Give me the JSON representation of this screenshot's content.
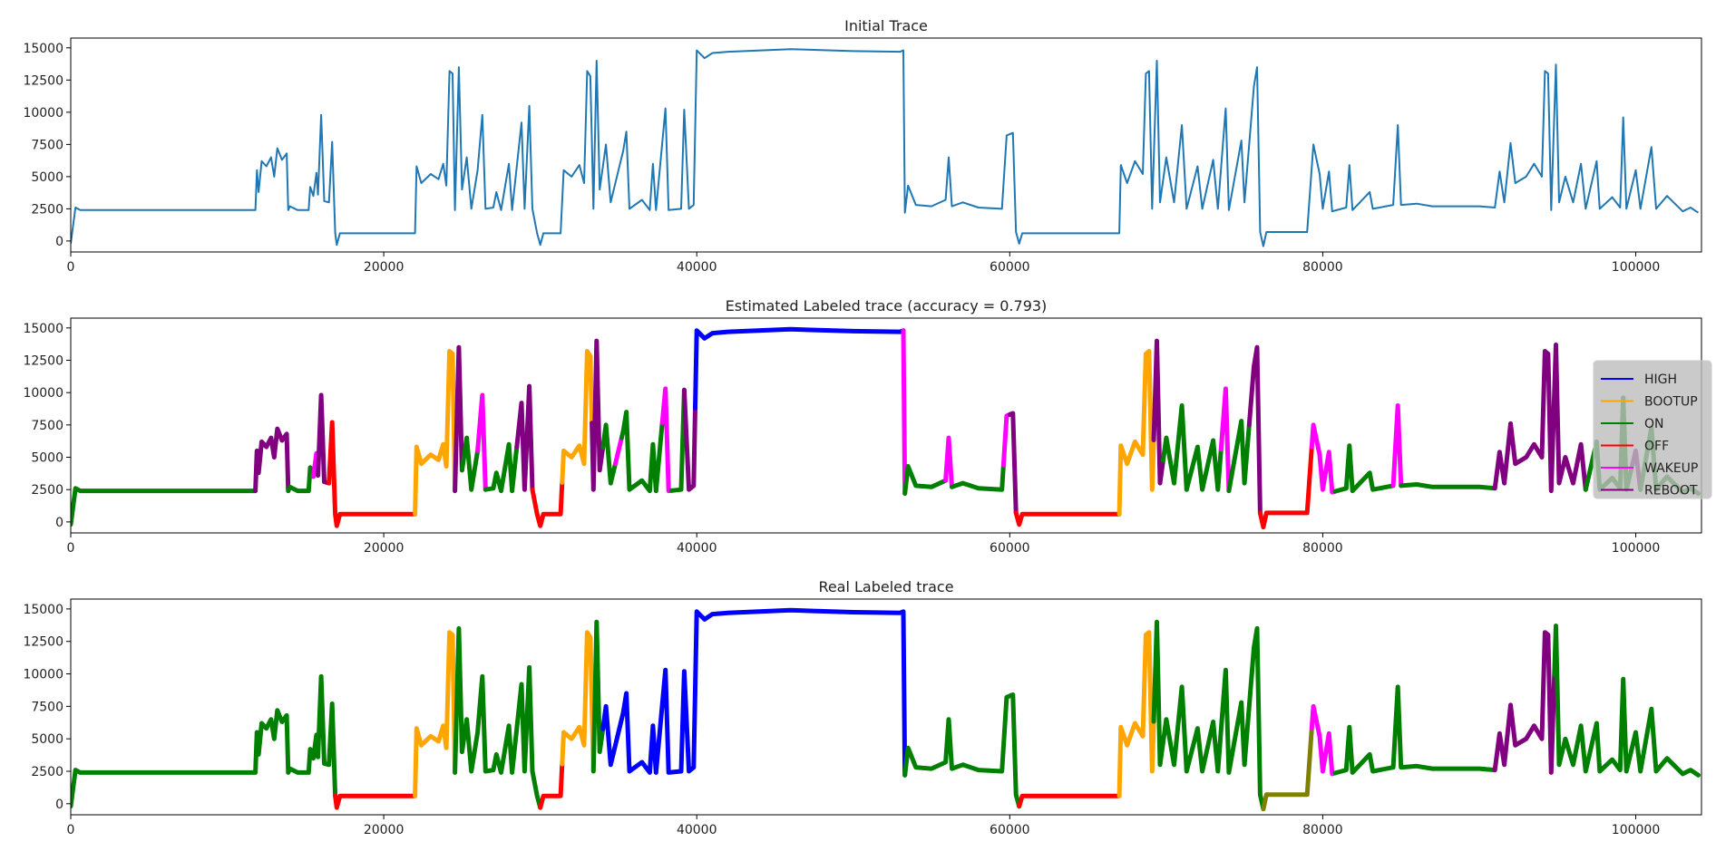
{
  "chart_data": [
    {
      "type": "line",
      "title": "Initial Trace",
      "xlim": [
        0,
        104200
      ],
      "ylim": [
        -850,
        15760
      ],
      "xticks": [
        "0",
        "20000",
        "40000",
        "60000",
        "80000",
        "100000"
      ],
      "yticks": [
        "0",
        "2500",
        "5000",
        "7500",
        "10000",
        "12500",
        "15000"
      ],
      "color": "#1f77b4",
      "grid": false
    },
    {
      "type": "line",
      "title": "Estimated Labeled trace (accuracy = 0.793)",
      "accuracy": 0.793,
      "xlim": [
        0,
        104200
      ],
      "ylim": [
        -850,
        15760
      ],
      "xticks": [
        "0",
        "20000",
        "40000",
        "60000",
        "80000",
        "100000"
      ],
      "yticks": [
        "0",
        "2500",
        "5000",
        "7500",
        "10000",
        "12500",
        "15000"
      ],
      "legend_position": "center-right",
      "legend": [
        "HIGH",
        "BOOTUP",
        "ON",
        "OFF",
        "WAKEUP",
        "REBOOT"
      ],
      "segments": [
        [
          0,
          11800,
          "ON"
        ],
        [
          11800,
          13900,
          "REBOOT"
        ],
        [
          13900,
          15500,
          "ON"
        ],
        [
          15500,
          15800,
          "WAKEUP"
        ],
        [
          15800,
          16500,
          "REBOOT"
        ],
        [
          16500,
          22000,
          "OFF"
        ],
        [
          22000,
          24550,
          "BOOTUP"
        ],
        [
          24550,
          25000,
          "REBOOT"
        ],
        [
          25000,
          26000,
          "ON"
        ],
        [
          26000,
          26500,
          "WAKEUP"
        ],
        [
          26500,
          28500,
          "ON"
        ],
        [
          28500,
          29500,
          "REBOOT"
        ],
        [
          29500,
          31400,
          "OFF"
        ],
        [
          31400,
          33300,
          "BOOTUP"
        ],
        [
          33300,
          34000,
          "REBOOT"
        ],
        [
          34000,
          34800,
          "ON"
        ],
        [
          34800,
          35200,
          "WAKEUP"
        ],
        [
          35200,
          37800,
          "ON"
        ],
        [
          37800,
          38400,
          "WAKEUP"
        ],
        [
          38400,
          39200,
          "ON"
        ],
        [
          39200,
          39900,
          "REBOOT"
        ],
        [
          39900,
          53200,
          "HIGH"
        ],
        [
          53200,
          53300,
          "WAKEUP"
        ],
        [
          53300,
          55900,
          "ON"
        ],
        [
          55900,
          56300,
          "WAKEUP"
        ],
        [
          56300,
          59600,
          "ON"
        ],
        [
          59600,
          60000,
          "WAKEUP"
        ],
        [
          60000,
          60400,
          "REBOOT"
        ],
        [
          60400,
          67000,
          "OFF"
        ],
        [
          67000,
          69200,
          "BOOTUP"
        ],
        [
          69200,
          69800,
          "REBOOT"
        ],
        [
          69800,
          73500,
          "ON"
        ],
        [
          73500,
          74000,
          "WAKEUP"
        ],
        [
          74000,
          75300,
          "ON"
        ],
        [
          75300,
          76000,
          "REBOOT"
        ],
        [
          76000,
          79300,
          "OFF"
        ],
        [
          79300,
          80800,
          "WAKEUP"
        ],
        [
          80800,
          84500,
          "ON"
        ],
        [
          84500,
          85000,
          "WAKEUP"
        ],
        [
          85000,
          91000,
          "ON"
        ],
        [
          91000,
          96800,
          "REBOOT"
        ],
        [
          96800,
          99800,
          "ON"
        ],
        [
          99800,
          100300,
          "REBOOT"
        ],
        [
          100300,
          104000,
          "ON"
        ]
      ]
    },
    {
      "type": "line",
      "title": "Real Labeled trace",
      "xlim": [
        0,
        104200
      ],
      "ylim": [
        -850,
        15760
      ],
      "xticks": [
        "0",
        "20000",
        "40000",
        "60000",
        "80000",
        "100000"
      ],
      "yticks": [
        "0",
        "2500",
        "5000",
        "7500",
        "10000",
        "12500",
        "15000"
      ],
      "segments": [
        [
          0,
          16900,
          "ON"
        ],
        [
          16900,
          22000,
          "OFF"
        ],
        [
          22000,
          24550,
          "BOOTUP"
        ],
        [
          24550,
          30000,
          "ON"
        ],
        [
          30000,
          31400,
          "OFF"
        ],
        [
          31400,
          33400,
          "BOOTUP"
        ],
        [
          33400,
          34000,
          "ON"
        ],
        [
          34000,
          53300,
          "HIGH"
        ],
        [
          53300,
          60600,
          "ON"
        ],
        [
          60600,
          67000,
          "OFF"
        ],
        [
          67000,
          69200,
          "BOOTUP"
        ],
        [
          69200,
          76200,
          "ON"
        ],
        [
          76200,
          79300,
          null
        ],
        [
          79300,
          80800,
          "WAKEUP"
        ],
        [
          80800,
          91000,
          "ON"
        ],
        [
          91000,
          94800,
          "REBOOT"
        ],
        [
          94800,
          104000,
          "ON"
        ]
      ]
    }
  ],
  "label_colors": {
    "HIGH": "#0000ff",
    "BOOTUP": "#ffa500",
    "ON": "#008000",
    "OFF": "#ff0000",
    "WAKEUP": "#ff00ff",
    "REBOOT": "#800080",
    "unlegended": "#808000"
  },
  "trace": [
    [
      0,
      -200
    ],
    [
      300,
      2600
    ],
    [
      600,
      2400
    ],
    [
      11800,
      2400
    ],
    [
      11900,
      5500
    ],
    [
      12000,
      3800
    ],
    [
      12200,
      6200
    ],
    [
      12500,
      5800
    ],
    [
      12800,
      6500
    ],
    [
      13000,
      5000
    ],
    [
      13200,
      7200
    ],
    [
      13500,
      6300
    ],
    [
      13800,
      6800
    ],
    [
      13900,
      2400
    ],
    [
      14000,
      2700
    ],
    [
      14500,
      2400
    ],
    [
      15200,
      2400
    ],
    [
      15300,
      4200
    ],
    [
      15500,
      3500
    ],
    [
      15700,
      5300
    ],
    [
      15800,
      3600
    ],
    [
      16000,
      9800
    ],
    [
      16200,
      3100
    ],
    [
      16500,
      3000
    ],
    [
      16700,
      7700
    ],
    [
      16900,
      600
    ],
    [
      17000,
      -300
    ],
    [
      17200,
      600
    ],
    [
      22000,
      600
    ],
    [
      22100,
      5800
    ],
    [
      22400,
      4500
    ],
    [
      23000,
      5200
    ],
    [
      23500,
      4800
    ],
    [
      23800,
      6000
    ],
    [
      24000,
      4300
    ],
    [
      24200,
      13200
    ],
    [
      24400,
      13000
    ],
    [
      24550,
      2400
    ],
    [
      24800,
      13500
    ],
    [
      25000,
      4000
    ],
    [
      25300,
      6500
    ],
    [
      25600,
      2500
    ],
    [
      26000,
      5500
    ],
    [
      26300,
      9800
    ],
    [
      26500,
      2500
    ],
    [
      27000,
      2600
    ],
    [
      27200,
      3800
    ],
    [
      27500,
      2400
    ],
    [
      28000,
      6000
    ],
    [
      28200,
      2400
    ],
    [
      28800,
      9200
    ],
    [
      29000,
      2500
    ],
    [
      29300,
      10500
    ],
    [
      29500,
      2500
    ],
    [
      29800,
      600
    ],
    [
      30000,
      -300
    ],
    [
      30200,
      600
    ],
    [
      31300,
      600
    ],
    [
      31500,
      5500
    ],
    [
      32000,
      5000
    ],
    [
      32500,
      5900
    ],
    [
      32800,
      4500
    ],
    [
      33000,
      13200
    ],
    [
      33200,
      12800
    ],
    [
      33400,
      2500
    ],
    [
      33600,
      14000
    ],
    [
      33800,
      4000
    ],
    [
      34200,
      7500
    ],
    [
      34500,
      3000
    ],
    [
      35000,
      5500
    ],
    [
      35300,
      7000
    ],
    [
      35500,
      8500
    ],
    [
      35700,
      2500
    ],
    [
      36500,
      3200
    ],
    [
      37000,
      2400
    ],
    [
      37200,
      6000
    ],
    [
      37400,
      2400
    ],
    [
      38000,
      10300
    ],
    [
      38200,
      2400
    ],
    [
      39000,
      2500
    ],
    [
      39200,
      10200
    ],
    [
      39500,
      2500
    ],
    [
      39800,
      2800
    ],
    [
      40000,
      14800
    ],
    [
      40500,
      14200
    ],
    [
      41000,
      14600
    ],
    [
      42000,
      14700
    ],
    [
      46000,
      14900
    ],
    [
      50000,
      14750
    ],
    [
      53000,
      14700
    ],
    [
      53200,
      14800
    ],
    [
      53300,
      2200
    ],
    [
      53500,
      4300
    ],
    [
      54000,
      2800
    ],
    [
      55000,
      2700
    ],
    [
      55900,
      3200
    ],
    [
      56100,
      6500
    ],
    [
      56300,
      2700
    ],
    [
      57000,
      3000
    ],
    [
      58000,
      2600
    ],
    [
      59500,
      2500
    ],
    [
      59800,
      8200
    ],
    [
      60200,
      8400
    ],
    [
      60400,
      700
    ],
    [
      60600,
      -200
    ],
    [
      60800,
      600
    ],
    [
      67000,
      600
    ],
    [
      67100,
      5900
    ],
    [
      67500,
      4500
    ],
    [
      68000,
      6200
    ],
    [
      68500,
      5200
    ],
    [
      68700,
      13000
    ],
    [
      68900,
      13200
    ],
    [
      69100,
      2500
    ],
    [
      69400,
      14000
    ],
    [
      69600,
      3000
    ],
    [
      70000,
      6500
    ],
    [
      70500,
      3000
    ],
    [
      71000,
      9000
    ],
    [
      71300,
      2500
    ],
    [
      72000,
      5800
    ],
    [
      72300,
      2500
    ],
    [
      73000,
      6300
    ],
    [
      73300,
      2500
    ],
    [
      73800,
      10300
    ],
    [
      74000,
      2400
    ],
    [
      74800,
      7800
    ],
    [
      75000,
      3000
    ],
    [
      75600,
      12000
    ],
    [
      75800,
      13500
    ],
    [
      76000,
      700
    ],
    [
      76200,
      -400
    ],
    [
      76400,
      700
    ],
    [
      79000,
      700
    ],
    [
      79400,
      7500
    ],
    [
      79800,
      5200
    ],
    [
      80000,
      2500
    ],
    [
      80400,
      5400
    ],
    [
      80600,
      2300
    ],
    [
      81500,
      2600
    ],
    [
      81700,
      5900
    ],
    [
      81900,
      2400
    ],
    [
      83000,
      3800
    ],
    [
      83200,
      2500
    ],
    [
      84500,
      2800
    ],
    [
      84800,
      9000
    ],
    [
      85000,
      2800
    ],
    [
      86000,
      2900
    ],
    [
      87000,
      2700
    ],
    [
      90000,
      2700
    ],
    [
      91000,
      2600
    ],
    [
      91300,
      5400
    ],
    [
      91600,
      3000
    ],
    [
      92000,
      7600
    ],
    [
      92300,
      4500
    ],
    [
      93000,
      5000
    ],
    [
      93500,
      6000
    ],
    [
      94000,
      5000
    ],
    [
      94200,
      13200
    ],
    [
      94400,
      13000
    ],
    [
      94600,
      2400
    ],
    [
      94900,
      13700
    ],
    [
      95100,
      3000
    ],
    [
      95500,
      5000
    ],
    [
      96000,
      3000
    ],
    [
      96500,
      6000
    ],
    [
      96800,
      2500
    ],
    [
      97500,
      6200
    ],
    [
      97700,
      2500
    ],
    [
      98500,
      3400
    ],
    [
      99000,
      2600
    ],
    [
      99200,
      9600
    ],
    [
      99400,
      2500
    ],
    [
      100000,
      5500
    ],
    [
      100300,
      2500
    ],
    [
      101000,
      7300
    ],
    [
      101300,
      2500
    ],
    [
      102000,
      3500
    ],
    [
      103000,
      2300
    ],
    [
      103500,
      2600
    ],
    [
      104000,
      2200
    ]
  ]
}
